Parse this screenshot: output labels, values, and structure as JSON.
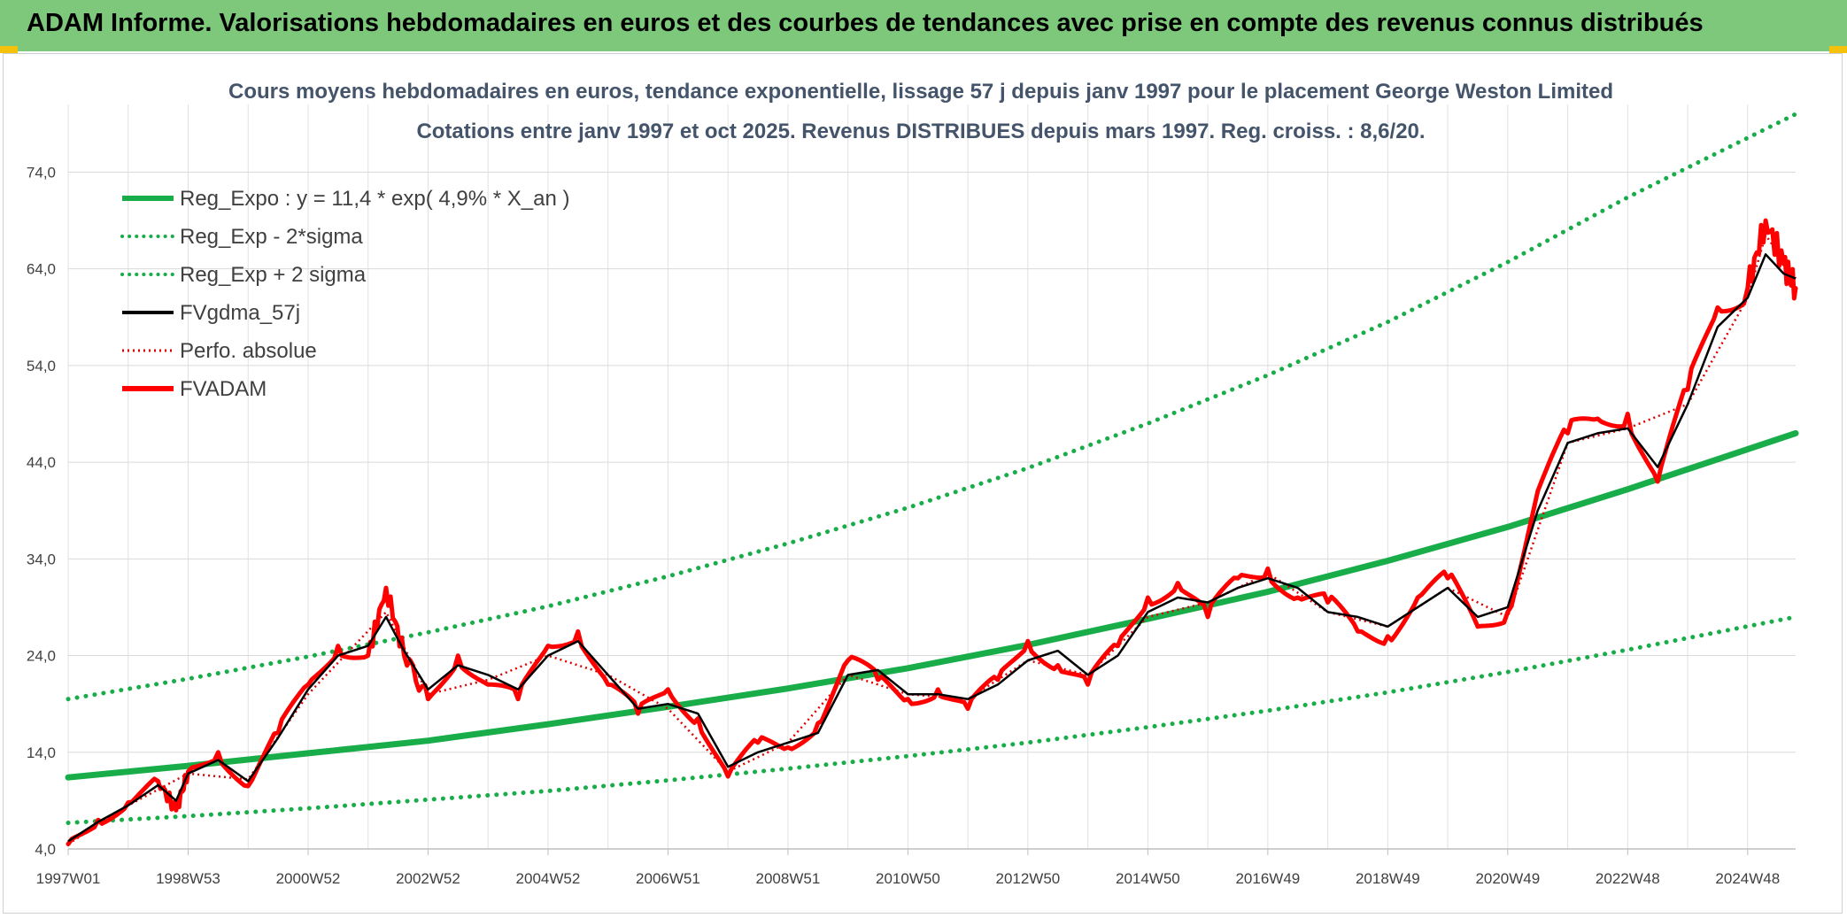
{
  "banner": {
    "title": "ADAM Informe. Valorisations hebdomadaires en euros et des courbes de tendances avec prise en compte des revenus connus distribués"
  },
  "chart_data": {
    "type": "line",
    "title": "Cours moyens hebdomadaires en euros, tendance exponentielle, lissage 57 j depuis janv 1997 pour le placement George Weston Limited",
    "subtitle": "Cotations entre janv 1997 et oct 2025. Revenus DISTRIBUES depuis mars 1997. Reg. croiss. : 8,6/20.",
    "xlabel": "",
    "ylabel": "",
    "ylim": [
      4,
      81
    ],
    "yticks": [
      "74,0",
      "64,0",
      "54,0",
      "44,0",
      "34,0",
      "24,0",
      "14,0",
      "4,0"
    ],
    "ytick_values": [
      74,
      64,
      54,
      44,
      34,
      24,
      14,
      4
    ],
    "xlim": [
      1997.0,
      2025.8
    ],
    "xticks": [
      "1997W01",
      "1998W53",
      "2000W52",
      "2002W52",
      "2004W52",
      "2006W51",
      "2008W51",
      "2010W50",
      "2012W50",
      "2014W50",
      "2016W49",
      "2018W49",
      "2020W49",
      "2022W48",
      "2024W48"
    ],
    "xtick_values": [
      1997.0,
      1999.0,
      2001.0,
      2003.0,
      2005.0,
      2007.0,
      2009.0,
      2011.0,
      2013.0,
      2015.0,
      2017.0,
      2019.0,
      2021.0,
      2023.0,
      2025.0
    ],
    "grid": true,
    "legend_position": "top-left",
    "legend": [
      {
        "name": "Reg_Expo : y = 11,4 * exp( 4,9% *  X_an )",
        "color": "#19ad4a",
        "style": "thick"
      },
      {
        "name": "Reg_Exp - 2*sigma",
        "color": "#19ad4a",
        "style": "dotted"
      },
      {
        "name": "Reg_Exp + 2 sigma",
        "color": "#19ad4a",
        "style": "dotted"
      },
      {
        "name": "FVgdma_57j",
        "color": "#000000",
        "style": "solid"
      },
      {
        "name": "Perfo. absolue",
        "color": "#e00000",
        "style": "dotted"
      },
      {
        "name": "FVADAM",
        "color": "#ff0000",
        "style": "thick"
      }
    ],
    "series": [
      {
        "name": "Reg_Expo",
        "x": [
          1997.0,
          1999.0,
          2001.0,
          2003.0,
          2005.0,
          2007.0,
          2009.0,
          2011.0,
          2013.0,
          2015.0,
          2017.0,
          2019.0,
          2021.0,
          2023.0,
          2025.8
        ],
        "y": [
          11.4,
          12.6,
          13.9,
          15.2,
          16.9,
          18.7,
          20.6,
          22.7,
          25.1,
          27.8,
          30.6,
          33.8,
          37.3,
          41.2,
          47.0
        ]
      },
      {
        "name": "Reg_Exp - 2*sigma",
        "x": [
          1997.0,
          1999.0,
          2001.0,
          2003.0,
          2005.0,
          2007.0,
          2009.0,
          2011.0,
          2013.0,
          2015.0,
          2017.0,
          2019.0,
          2021.0,
          2023.0,
          2025.8
        ],
        "y": [
          6.7,
          7.4,
          8.2,
          9.1,
          10.0,
          11.1,
          12.3,
          13.6,
          15.0,
          16.6,
          18.3,
          20.2,
          22.3,
          24.6,
          28.0
        ]
      },
      {
        "name": "Reg_Exp + 2 sigma",
        "x": [
          1997.0,
          1999.0,
          2001.0,
          2003.0,
          2005.0,
          2007.0,
          2009.0,
          2011.0,
          2013.0,
          2015.0,
          2017.0,
          2019.0,
          2021.0,
          2023.0,
          2025.8
        ],
        "y": [
          19.5,
          21.6,
          23.9,
          26.4,
          29.1,
          32.2,
          35.6,
          39.3,
          43.4,
          48.0,
          53.0,
          58.5,
          64.7,
          71.4,
          80.0
        ]
      },
      {
        "name": "FVgdma_57j",
        "x": [
          1997.0,
          1997.5,
          1998.0,
          1998.5,
          1998.8,
          1999.0,
          1999.5,
          2000.0,
          2000.5,
          2001.0,
          2001.5,
          2002.0,
          2002.3,
          2002.6,
          2003.0,
          2003.5,
          2004.0,
          2004.5,
          2005.0,
          2005.5,
          2006.0,
          2006.5,
          2007.0,
          2007.5,
          2008.0,
          2008.5,
          2009.0,
          2009.5,
          2010.0,
          2010.5,
          2011.0,
          2011.5,
          2012.0,
          2012.5,
          2013.0,
          2013.5,
          2014.0,
          2014.5,
          2015.0,
          2015.5,
          2016.0,
          2016.5,
          2017.0,
          2017.5,
          2018.0,
          2018.5,
          2019.0,
          2019.5,
          2020.0,
          2020.5,
          2021.0,
          2021.5,
          2022.0,
          2022.5,
          2023.0,
          2023.5,
          2024.0,
          2024.5,
          2025.0,
          2025.3,
          2025.6,
          2025.8
        ],
        "y": [
          4.8,
          6.8,
          8.5,
          10.6,
          9.0,
          11.8,
          13.2,
          11.0,
          15.5,
          20.5,
          24.0,
          25.0,
          28.0,
          24.5,
          20.5,
          23.0,
          22.0,
          20.5,
          24.0,
          25.5,
          22.0,
          18.5,
          19.0,
          18.0,
          12.5,
          14.0,
          15.0,
          16.0,
          22.0,
          22.5,
          20.0,
          20.0,
          19.5,
          21.0,
          23.5,
          24.5,
          22.0,
          24.0,
          28.5,
          30.0,
          29.5,
          31.0,
          32.0,
          31.0,
          28.5,
          28.0,
          27.0,
          29.0,
          31.0,
          28.0,
          29.0,
          39.0,
          46.0,
          47.0,
          47.5,
          43.5,
          50.0,
          58.0,
          61.0,
          65.5,
          63.5,
          63.0
        ]
      },
      {
        "name": "Perfo. absolue",
        "x": [
          1997.0,
          1998.0,
          1999.0,
          2000.0,
          2001.0,
          2002.3,
          2003.0,
          2004.0,
          2005.0,
          2006.0,
          2007.0,
          2008.0,
          2009.0,
          2010.0,
          2011.0,
          2012.0,
          2013.0,
          2014.0,
          2015.0,
          2016.0,
          2017.0,
          2018.0,
          2019.0,
          2020.0,
          2021.0,
          2022.0,
          2023.0,
          2024.0,
          2025.0,
          2025.3,
          2025.8
        ],
        "y": [
          4.5,
          8.5,
          11.8,
          11.2,
          20.0,
          28.5,
          20.0,
          21.5,
          24.0,
          22.0,
          18.5,
          12.0,
          15.0,
          22.0,
          20.0,
          19.5,
          23.5,
          22.0,
          28.0,
          29.5,
          32.5,
          28.5,
          27.0,
          31.0,
          28.0,
          46.0,
          47.5,
          50.0,
          61.0,
          67.5,
          63.0
        ]
      },
      {
        "name": "FVADAM",
        "x": [
          1997.0,
          1997.5,
          1998.0,
          1998.5,
          1998.8,
          1999.0,
          1999.5,
          2000.0,
          2000.5,
          2001.0,
          2001.5,
          2002.0,
          2002.3,
          2002.6,
          2003.0,
          2003.5,
          2004.0,
          2004.5,
          2005.0,
          2005.5,
          2006.0,
          2006.5,
          2007.0,
          2007.5,
          2008.0,
          2008.5,
          2009.0,
          2009.5,
          2010.0,
          2010.5,
          2011.0,
          2011.5,
          2012.0,
          2012.5,
          2013.0,
          2013.5,
          2014.0,
          2014.5,
          2015.0,
          2015.5,
          2016.0,
          2016.5,
          2017.0,
          2017.5,
          2018.0,
          2018.5,
          2019.0,
          2019.5,
          2020.0,
          2020.5,
          2021.0,
          2021.5,
          2022.0,
          2022.5,
          2023.0,
          2023.5,
          2024.0,
          2024.5,
          2025.0,
          2025.3,
          2025.6,
          2025.8
        ],
        "y": [
          4.5,
          7.0,
          8.8,
          11.0,
          8.0,
          12.0,
          14.0,
          10.5,
          16.0,
          21.0,
          25.0,
          24.0,
          31.0,
          24.0,
          19.5,
          24.0,
          21.0,
          19.5,
          25.0,
          26.5,
          21.0,
          18.0,
          20.5,
          17.5,
          11.5,
          15.0,
          14.5,
          17.0,
          23.5,
          21.5,
          19.5,
          20.5,
          18.5,
          21.5,
          25.5,
          23.0,
          21.0,
          25.0,
          30.0,
          31.5,
          28.0,
          32.0,
          33.0,
          30.0,
          29.5,
          26.5,
          26.0,
          30.0,
          32.0,
          27.0,
          28.5,
          41.0,
          47.0,
          48.5,
          49.0,
          42.0,
          51.5,
          60.0,
          62.0,
          69.0,
          64.5,
          62.0
        ]
      }
    ]
  }
}
